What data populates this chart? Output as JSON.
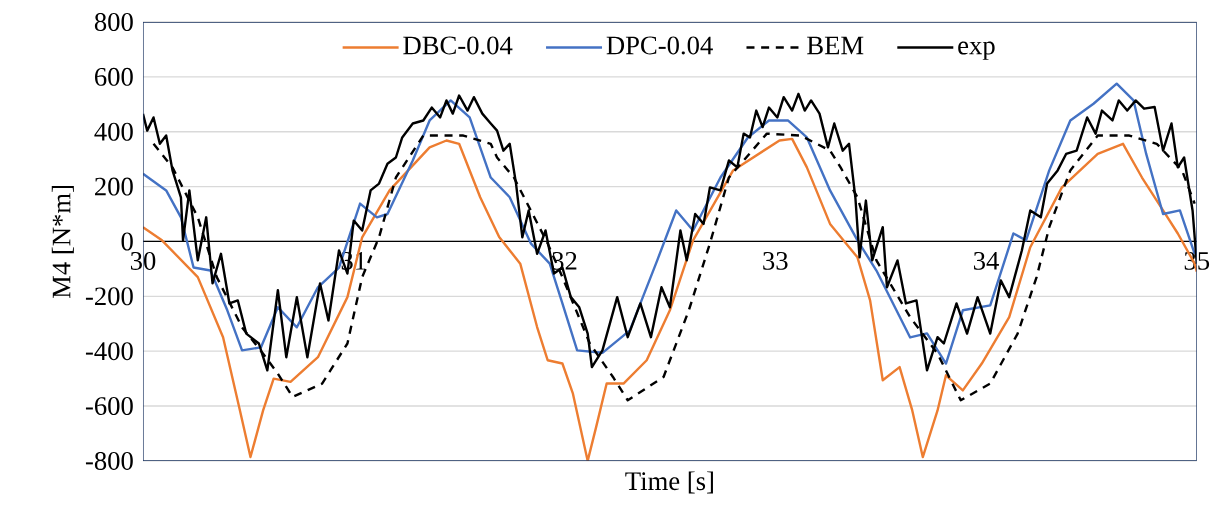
{
  "chart_data": {
    "type": "line",
    "xlabel": "Time [s]",
    "ylabel": "M4 [N*m]",
    "xlim": [
      30,
      35
    ],
    "xticks": [
      30,
      31,
      32,
      33,
      34,
      35
    ],
    "ylim": [
      -800,
      800
    ],
    "yticks": [
      -800,
      -600,
      -400,
      -200,
      0,
      200,
      400,
      600,
      800
    ],
    "grid": "y",
    "legend": "top",
    "line_style": "solid",
    "series": [
      {
        "name": "DBC-0.04",
        "color": "#ed7d31",
        "x": [
          30.0,
          30.09,
          30.26,
          30.38,
          30.46,
          30.51,
          30.57,
          30.62,
          30.7,
          30.83,
          30.97,
          31.04,
          31.17,
          31.36,
          31.44,
          31.5,
          31.6,
          31.69,
          31.79,
          31.87,
          31.92,
          31.99,
          32.04,
          32.11,
          32.15,
          32.2,
          32.28,
          32.39,
          32.5,
          32.61,
          32.8,
          33.02,
          33.08,
          33.15,
          33.26,
          33.39,
          33.45,
          33.51,
          33.59,
          33.65,
          33.7,
          33.77,
          33.81,
          33.89,
          33.98,
          34.11,
          34.21,
          34.36,
          34.53,
          34.65,
          34.74,
          34.84,
          34.91,
          34.99,
          35.0
        ],
        "values": [
          52,
          4,
          -130,
          -349,
          -616,
          -786,
          -616,
          -500,
          -512,
          -422,
          -203,
          15,
          186,
          343,
          368,
          356,
          161,
          16,
          -81,
          -312,
          -433,
          -445,
          -555,
          -800,
          -677,
          -518,
          -518,
          -433,
          -251,
          4,
          259,
          368,
          374,
          270,
          64,
          -58,
          -215,
          -506,
          -458,
          -616,
          -786,
          -616,
          -488,
          -543,
          -445,
          -276,
          -21,
          197,
          319,
          356,
          233,
          113,
          29,
          -81,
          -110
        ]
      },
      {
        "name": "DPC-0.04",
        "color": "#4472c4",
        "x": [
          30.0,
          30.11,
          30.18,
          30.24,
          30.32,
          30.4,
          30.47,
          30.56,
          30.64,
          30.73,
          30.83,
          30.93,
          31.03,
          31.11,
          31.16,
          31.28,
          31.36,
          31.46,
          31.55,
          31.65,
          31.74,
          31.84,
          31.93,
          31.99,
          32.06,
          32.18,
          32.31,
          32.44,
          32.53,
          32.61,
          32.74,
          32.87,
          32.97,
          33.06,
          33.15,
          33.26,
          33.39,
          33.48,
          33.64,
          33.72,
          33.81,
          33.89,
          34.02,
          34.13,
          34.19,
          34.3,
          34.4,
          34.51,
          34.62,
          34.7,
          34.76,
          34.84,
          34.92,
          34.99
        ],
        "values": [
          247,
          186,
          88,
          -95,
          -106,
          -251,
          -397,
          -386,
          -240,
          -313,
          -167,
          -95,
          138,
          88,
          100,
          295,
          441,
          514,
          452,
          233,
          161,
          -7,
          -81,
          -226,
          -397,
          -406,
          -324,
          -69,
          113,
          40,
          233,
          379,
          441,
          441,
          379,
          186,
          4,
          -106,
          -350,
          -335,
          -445,
          -251,
          -233,
          29,
          4,
          259,
          441,
          502,
          575,
          514,
          319,
          100,
          113,
          -45
        ]
      },
      {
        "name": "BEM",
        "color": "#000000",
        "line_style": "dashed",
        "x": [
          30.05,
          30.14,
          30.26,
          30.35,
          30.47,
          30.57,
          30.64,
          30.71,
          30.85,
          30.97,
          31.04,
          31.12,
          31.2,
          31.33,
          31.52,
          31.65,
          31.68,
          31.76,
          31.92,
          31.99,
          32.12,
          32.23,
          32.3,
          32.47,
          32.59,
          32.69,
          32.78,
          32.96,
          33.12,
          33.26,
          33.31,
          33.39,
          33.48,
          33.64,
          33.77,
          33.88,
          34.02,
          34.15,
          34.24,
          34.3,
          34.4,
          34.53,
          34.68,
          34.81,
          34.93,
          34.99
        ],
        "values": [
          356,
          270,
          88,
          -130,
          -313,
          -409,
          -482,
          -567,
          -518,
          -372,
          -130,
          15,
          233,
          386,
          386,
          356,
          306,
          233,
          -7,
          -130,
          -372,
          -494,
          -579,
          -494,
          -251,
          -7,
          233,
          393,
          386,
          331,
          270,
          161,
          -69,
          -276,
          -409,
          -579,
          -518,
          -336,
          -130,
          52,
          259,
          386,
          386,
          356,
          259,
          138
        ]
      },
      {
        "name": "exp",
        "color": "#000000",
        "x": [
          30.0,
          30.02,
          30.05,
          30.08,
          30.11,
          30.14,
          30.18,
          30.19,
          30.22,
          30.26,
          30.3,
          30.33,
          30.37,
          30.41,
          30.45,
          30.49,
          30.55,
          30.59,
          30.64,
          30.68,
          30.73,
          30.78,
          30.84,
          30.88,
          30.93,
          30.97,
          31.0,
          31.04,
          31.08,
          31.12,
          31.16,
          31.2,
          31.23,
          31.28,
          31.33,
          31.37,
          31.41,
          31.44,
          31.47,
          31.5,
          31.54,
          31.57,
          31.61,
          31.65,
          31.68,
          31.71,
          31.74,
          31.77,
          31.8,
          31.83,
          31.87,
          31.91,
          31.95,
          31.99,
          32.03,
          32.07,
          32.11,
          32.13,
          32.18,
          32.25,
          32.3,
          32.36,
          32.41,
          32.46,
          32.5,
          32.55,
          32.58,
          32.62,
          32.66,
          32.69,
          32.74,
          32.78,
          32.82,
          32.85,
          32.88,
          32.91,
          32.94,
          32.97,
          33.01,
          33.04,
          33.08,
          33.11,
          33.14,
          33.17,
          33.21,
          33.25,
          33.28,
          33.32,
          33.35,
          33.38,
          33.4,
          33.43,
          33.46,
          33.51,
          33.53,
          33.58,
          33.62,
          33.67,
          33.72,
          33.77,
          33.8,
          33.86,
          33.91,
          33.96,
          34.02,
          34.07,
          34.11,
          34.17,
          34.21,
          34.26,
          34.29,
          34.34,
          34.38,
          34.43,
          34.48,
          34.52,
          34.55,
          34.6,
          34.63,
          34.67,
          34.71,
          34.75,
          34.8,
          34.84,
          34.88,
          34.91,
          34.94,
          34.98,
          35.0
        ],
        "values": [
          465,
          404,
          452,
          356,
          386,
          259,
          161,
          4,
          186,
          -69,
          88,
          -153,
          -45,
          -226,
          -215,
          -336,
          -372,
          -470,
          -178,
          -422,
          -203,
          -422,
          -153,
          -288,
          -33,
          -117,
          76,
          40,
          186,
          211,
          283,
          306,
          379,
          430,
          441,
          488,
          452,
          514,
          466,
          532,
          477,
          526,
          466,
          430,
          404,
          331,
          356,
          211,
          15,
          113,
          -45,
          40,
          -117,
          -95,
          -203,
          -240,
          -336,
          -458,
          -397,
          -203,
          -349,
          -226,
          -349,
          -167,
          -240,
          40,
          -69,
          100,
          64,
          197,
          186,
          295,
          270,
          393,
          379,
          477,
          417,
          488,
          452,
          526,
          477,
          538,
          477,
          514,
          466,
          343,
          430,
          331,
          356,
          161,
          -58,
          149,
          -69,
          52,
          -167,
          -69,
          -226,
          -215,
          -470,
          -349,
          -372,
          -226,
          -336,
          -203,
          -336,
          -142,
          -203,
          -33,
          113,
          88,
          211,
          259,
          319,
          331,
          452,
          393,
          477,
          441,
          514,
          477,
          514,
          484,
          490,
          331,
          430,
          270,
          306,
          113,
          -81
        ]
      }
    ]
  }
}
